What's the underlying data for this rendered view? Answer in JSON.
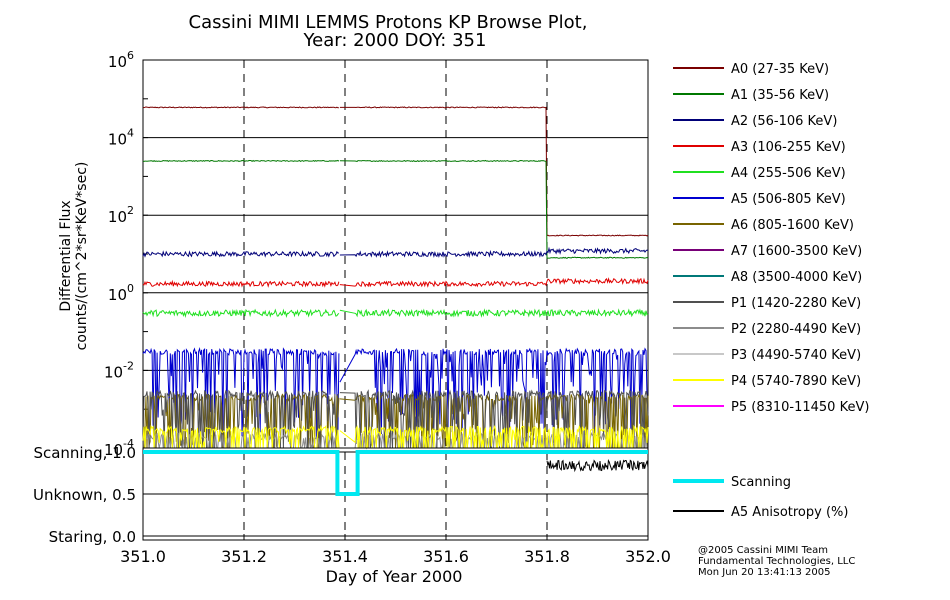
{
  "title": {
    "line1": "Cassini MIMI LEMMS Protons KP Browse Plot,",
    "line2": "Year: 2000 DOY: 351"
  },
  "footer": {
    "line1": "@2005 Cassini MIMI Team",
    "line2": "Fundamental Technologies, LLC",
    "line3": "Mon Jun 20 13:41:13 2005"
  },
  "chart_data": [
    {
      "type": "line",
      "panel": "flux",
      "title": "Cassini MIMI LEMMS Protons KP Browse Plot, Year: 2000 DOY: 351",
      "ylabel_line1": "Differential Flux",
      "ylabel_line2": "counts/(cm^2*sr*KeV*sec)",
      "yscale": "log",
      "ylim": [
        0.0001,
        1000000
      ],
      "yticks": [
        {
          "value": 0.0001,
          "base": "10",
          "exp": "-4"
        },
        {
          "value": 0.01,
          "base": "10",
          "exp": "-2"
        },
        {
          "value": 1,
          "base": "10",
          "exp": "0"
        },
        {
          "value": 100,
          "base": "10",
          "exp": "2"
        },
        {
          "value": 10000,
          "base": "10",
          "exp": "4"
        },
        {
          "value": 1000000,
          "base": "10",
          "exp": "6"
        }
      ],
      "xlim": [
        351.0,
        352.0
      ],
      "grid": true,
      "data_gap": [
        351.39,
        351.42
      ],
      "series": [
        {
          "name": "A0 (27-35 KeV)",
          "color": "#7a0000",
          "before": 60000,
          "after": 30
        },
        {
          "name": "A1 (35-56 KeV)",
          "color": "#007800",
          "before": 2500,
          "after": 8
        },
        {
          "name": "A2 (56-106 KeV)",
          "color": "#000078",
          "before": 10,
          "after": 12
        },
        {
          "name": "A3 (106-255 KeV)",
          "color": "#e00000",
          "before": 1.7,
          "after": 2
        },
        {
          "name": "A4 (255-506 KeV)",
          "color": "#20e020",
          "before": 0.3,
          "after": 0.3
        },
        {
          "name": "A5 (506-805 KeV)",
          "color": "#0000d0",
          "before": 0.03,
          "after": 0.03
        },
        {
          "name": "A6 (805-1600 KeV)",
          "color": "#786400",
          "before": 0.002,
          "after": 0.002
        },
        {
          "name": "A7 (1600-3500 KeV)",
          "color": "#780078",
          "before": null,
          "after": null
        },
        {
          "name": "A8 (3500-4000 KeV)",
          "color": "#007878",
          "before": null,
          "after": null
        },
        {
          "name": "P1 (1420-2280 KeV)",
          "color": "#505050",
          "before": 0.0025,
          "after": 0.0025
        },
        {
          "name": "P2 (2280-4490 KeV)",
          "color": "#8c8c8c",
          "before": 0.0002,
          "after": 0.0002
        },
        {
          "name": "P3 (4490-5740 KeV)",
          "color": "#c8c8c8",
          "before": null,
          "after": null
        },
        {
          "name": "P4 (5740-7890 KeV)",
          "color": "#ffff00",
          "before": 0.0003,
          "after": 0.0003
        },
        {
          "name": "P5 (8310-11450 KeV)",
          "color": "#ff00ff",
          "before": null,
          "after": null
        }
      ]
    },
    {
      "type": "line",
      "panel": "scanning",
      "xlabel": "Day of Year 2000",
      "ylim": [
        0.0,
        1.0
      ],
      "yticks": [
        {
          "value": 1.0,
          "label": "Scanning, 1.0"
        },
        {
          "value": 0.5,
          "label": "Unknown, 0.5"
        },
        {
          "value": 0.0,
          "label": "Staring, 0.0"
        }
      ],
      "xticks": [
        {
          "value": 351.0,
          "label": "351.0"
        },
        {
          "value": 351.2,
          "label": "351.2"
        },
        {
          "value": 351.4,
          "label": "351.4"
        },
        {
          "value": 351.6,
          "label": "351.6"
        },
        {
          "value": 351.8,
          "label": "351.8"
        },
        {
          "value": 352.0,
          "label": "352.0"
        }
      ],
      "series": [
        {
          "name": "Scanning",
          "color": "#00e8f0",
          "x": [
            351.0,
            351.385,
            351.385,
            351.425,
            351.425,
            352.0
          ],
          "y": [
            1.0,
            1.0,
            0.5,
            0.5,
            1.0,
            1.0
          ]
        },
        {
          "name": "A5 Anisotropy (%)",
          "color": "#000000",
          "x_start": 351.8,
          "x_end": 352.0,
          "level": 0.9
        }
      ]
    }
  ]
}
